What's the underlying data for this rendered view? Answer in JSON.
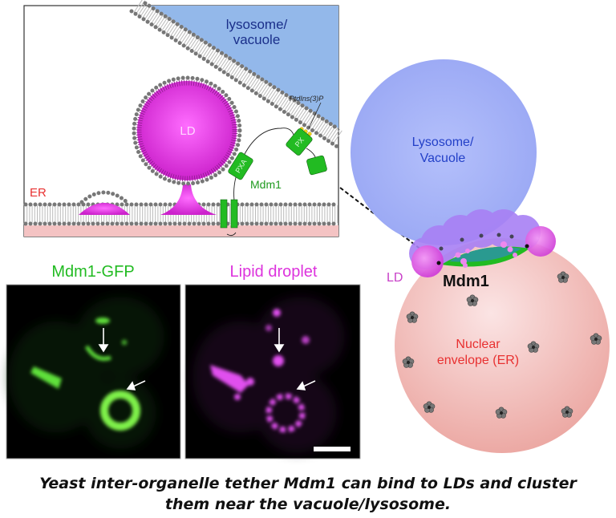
{
  "schematic": {
    "lysosome_label_line1": "lysosome/",
    "lysosome_label_line2": "vacuole",
    "ptdins_label": "PtdIns(3)P",
    "ld_label": "LD",
    "er_label": "ER",
    "pxa_label": "PXA",
    "px_label": "PX",
    "mdm1_label": "Mdm1"
  },
  "overview": {
    "lysosome_label_line1": "Lysosome/",
    "lysosome_label_line2": "Vacuole",
    "ld_label": "LD",
    "mdm1_label": "Mdm1",
    "nucleus_label_line1": "Nuclear",
    "nucleus_label_line2": "envelope (ER)"
  },
  "micrographs": {
    "left_title": "Mdm1-GFP",
    "right_title": "Lipid droplet"
  },
  "caption": {
    "line1": "Yeast inter-organelle tether Mdm1 can bind to LDs and cluster",
    "line2": "them near the vacuole/lysosome."
  },
  "colors": {
    "gfp": "#22bb22",
    "lipid": "#dd33dd",
    "er_label": "#e83030",
    "lysosome_text": "#1a2f8a",
    "lysosome_fill": "#93b8ea",
    "protein": "#22bb22"
  }
}
